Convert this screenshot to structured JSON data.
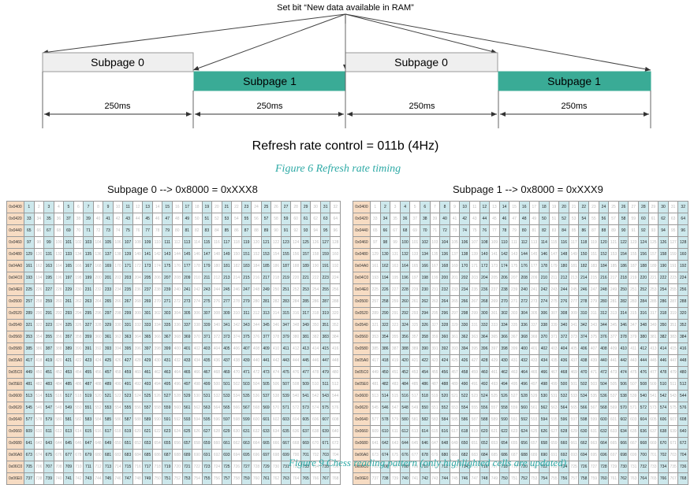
{
  "timing": {
    "top_label": "Set bit “New data available in RAM”",
    "subpage0_label": "Subpage 0",
    "subpage1_label": "Subpage 1",
    "durations": [
      "250ms",
      "250ms",
      "250ms",
      "250ms"
    ],
    "refresh_text": "Refresh rate control = 011b (4Hz)",
    "colors": {
      "subpage0": "#efefef",
      "subpage1": "#3aab96",
      "caption": "#2eaaa6",
      "highlight": "#cde8ec",
      "address": "#f7dcc3"
    }
  },
  "figure6_caption": "Figure 6 Refresh rate timing",
  "table_left": {
    "title": "Subpage 0 --> 0x8000 = 0xXXX8",
    "highlight_parity": 1,
    "addresses": [
      "0x0400",
      "0x0420",
      "0x0440",
      "0x0460",
      "0x0480",
      "0x04A0",
      "0x04C0",
      "0x04E0",
      "0x0500",
      "0x0520",
      "0x0540",
      "0x0560",
      "0x0580",
      "0x05A0",
      "0x05C0",
      "0x05E0",
      "0x0600",
      "0x0620",
      "0x0640",
      "0x0660",
      "0x0680",
      "0x06A0",
      "0x06C0",
      "0x06E0"
    ],
    "cells_per_row": 32
  },
  "table_right": {
    "title": "Subpage 1 --> 0x8000 = 0xXXX9",
    "highlight_parity": 0,
    "addresses": [
      "0x0400",
      "0x0420",
      "0x0440",
      "0x0460",
      "0x0480",
      "0x04A0",
      "0x04C0",
      "0x04E0",
      "0x0500",
      "0x0520",
      "0x0540",
      "0x0560",
      "0x0580",
      "0x05A0",
      "0x05C0",
      "0x05E0",
      "0x0600",
      "0x0620",
      "0x0640",
      "0x0660",
      "0x0680",
      "0x06A0",
      "0x06C0",
      "0x06E0"
    ],
    "cells_per_row": 32
  },
  "figure9_caption": "Figure 9 Chess reading pattern (only highlighted cells are updated)"
}
